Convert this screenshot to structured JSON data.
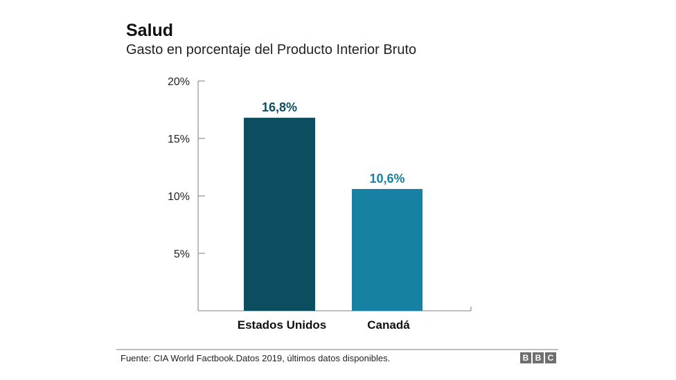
{
  "chart_data": {
    "type": "bar",
    "title": "Salud",
    "subtitle": "Gasto en porcentaje del Producto Interior Bruto",
    "categories": [
      "Estados Unidos",
      "Canadá"
    ],
    "values": [
      16.8,
      10.6
    ],
    "data_labels": [
      "16,8%",
      "10,6%"
    ],
    "colors": [
      "#0d4d60",
      "#1681a3"
    ],
    "ylim": [
      0,
      20
    ],
    "yticks": [
      5,
      10,
      15,
      20
    ],
    "ytick_labels": [
      "5%",
      "10%",
      "15%",
      "20%"
    ],
    "xlabel": "",
    "ylabel": "",
    "grid": false
  },
  "footer": {
    "source": "Fuente: CIA World Factbook.Datos 2019, últimos datos disponibles.",
    "logo": [
      "B",
      "B",
      "C"
    ]
  }
}
